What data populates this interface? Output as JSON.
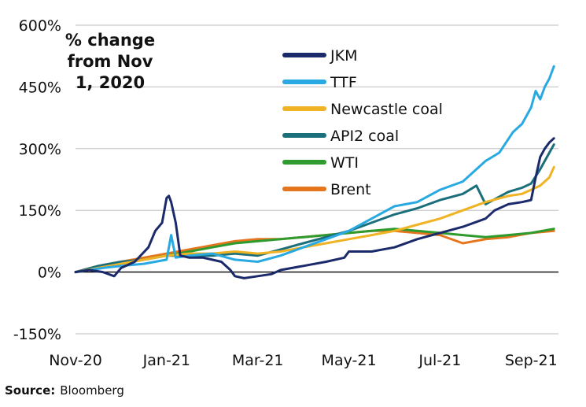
{
  "chart_data": {
    "type": "line",
    "title_lines": [
      "% change",
      "from Nov",
      "1, 2020"
    ],
    "xlabel": "",
    "ylabel": "",
    "ylim": [
      -150,
      600
    ],
    "y_ticks": [
      -150,
      0,
      150,
      300,
      450,
      600
    ],
    "y_tick_labels": [
      "-150%",
      "0%",
      "150%",
      "300%",
      "450%",
      "600%"
    ],
    "x_range": [
      0,
      10.6
    ],
    "x_ticks": [
      0,
      2,
      4,
      6,
      8,
      10
    ],
    "x_tick_labels": [
      "Nov-20",
      "Jan-21",
      "Mar-21",
      "May-21",
      "Jul-21",
      "Sep-21"
    ],
    "gridlines": true,
    "legend_position": "top-center",
    "series": [
      {
        "name": "JKM",
        "color": "#1b2a6b",
        "x": [
          0,
          0.3,
          0.6,
          0.85,
          1.0,
          1.3,
          1.6,
          1.75,
          1.9,
          2.0,
          2.05,
          2.1,
          2.2,
          2.3,
          2.5,
          2.8,
          3.0,
          3.2,
          3.4,
          3.5,
          3.7,
          4.0,
          4.3,
          4.5,
          5.0,
          5.5,
          5.9,
          6.0,
          6.5,
          7.0,
          7.5,
          8.0,
          8.5,
          9.0,
          9.2,
          9.5,
          9.8,
          10.0,
          10.1,
          10.2,
          10.3,
          10.4,
          10.5
        ],
        "values": [
          0,
          5,
          0,
          -10,
          10,
          25,
          60,
          100,
          120,
          180,
          185,
          170,
          120,
          40,
          35,
          35,
          30,
          25,
          5,
          -10,
          -15,
          -10,
          -5,
          5,
          15,
          25,
          35,
          50,
          50,
          60,
          80,
          95,
          110,
          130,
          150,
          165,
          170,
          175,
          230,
          280,
          300,
          315,
          325
        ]
      },
      {
        "name": "TTF",
        "color": "#29a9e1",
        "x": [
          0,
          0.3,
          0.6,
          1.0,
          1.5,
          2.0,
          2.1,
          2.2,
          2.5,
          3.0,
          3.5,
          4.0,
          4.5,
          5.0,
          5.5,
          6.0,
          6.5,
          7.0,
          7.5,
          8.0,
          8.5,
          9.0,
          9.3,
          9.6,
          9.8,
          10.0,
          10.1,
          10.2,
          10.3,
          10.4,
          10.5
        ],
        "values": [
          0,
          5,
          10,
          15,
          20,
          30,
          90,
          35,
          40,
          45,
          30,
          25,
          40,
          60,
          80,
          100,
          130,
          160,
          170,
          200,
          220,
          270,
          290,
          340,
          360,
          400,
          440,
          420,
          450,
          470,
          500
        ]
      },
      {
        "name": "Newcastle coal",
        "color": "#f0b323",
        "x": [
          0,
          0.5,
          1.0,
          1.5,
          2.0,
          2.5,
          3.0,
          3.5,
          4.0,
          4.5,
          5.0,
          5.5,
          6.0,
          6.5,
          7.0,
          7.5,
          8.0,
          8.5,
          9.0,
          9.5,
          9.8,
          10.0,
          10.2,
          10.4,
          10.5
        ],
        "values": [
          0,
          10,
          20,
          30,
          40,
          45,
          45,
          50,
          45,
          50,
          60,
          70,
          80,
          90,
          100,
          115,
          130,
          150,
          170,
          185,
          190,
          200,
          210,
          230,
          255
        ]
      },
      {
        "name": "API2 coal",
        "color": "#1b6f7a",
        "x": [
          0,
          0.5,
          1.0,
          1.5,
          2.0,
          2.5,
          3.0,
          3.5,
          4.0,
          4.5,
          5.0,
          5.5,
          6.0,
          6.5,
          7.0,
          7.5,
          8.0,
          8.5,
          8.8,
          9.0,
          9.5,
          9.8,
          10.0,
          10.2,
          10.4,
          10.5
        ],
        "values": [
          0,
          15,
          25,
          30,
          40,
          40,
          40,
          45,
          40,
          55,
          70,
          85,
          100,
          120,
          140,
          155,
          175,
          190,
          210,
          165,
          195,
          205,
          215,
          250,
          290,
          310
        ]
      },
      {
        "name": "WTI",
        "color": "#2e9b2e",
        "x": [
          0,
          0.5,
          1.0,
          1.5,
          2.0,
          2.5,
          3.0,
          3.5,
          4.0,
          4.5,
          5.0,
          5.5,
          6.0,
          6.5,
          7.0,
          7.5,
          8.0,
          8.5,
          9.0,
          9.5,
          10.0,
          10.5
        ],
        "values": [
          0,
          10,
          20,
          30,
          40,
          50,
          60,
          70,
          75,
          80,
          85,
          90,
          95,
          100,
          105,
          100,
          95,
          90,
          85,
          90,
          95,
          105
        ]
      },
      {
        "name": "Brent",
        "color": "#e5761e",
        "x": [
          0,
          0.5,
          1.0,
          1.5,
          2.0,
          2.5,
          3.0,
          3.5,
          4.0,
          4.5,
          5.0,
          5.5,
          6.0,
          6.5,
          7.0,
          7.5,
          8.0,
          8.5,
          9.0,
          9.5,
          10.0,
          10.5
        ],
        "values": [
          0,
          15,
          25,
          35,
          45,
          55,
          65,
          75,
          80,
          80,
          85,
          90,
          95,
          100,
          100,
          95,
          90,
          70,
          80,
          85,
          95,
          100
        ]
      }
    ]
  },
  "footer": {
    "source_label": "Source:",
    "source_value": "Bloomberg"
  }
}
